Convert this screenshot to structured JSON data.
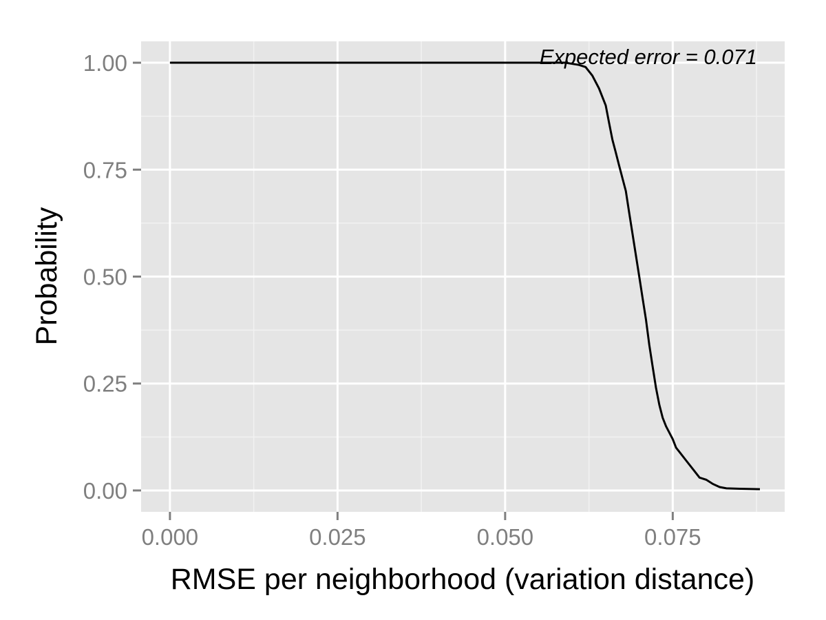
{
  "chart_data": {
    "type": "line",
    "xlabel": "RMSE per neighborhood (variation distance)",
    "ylabel": "Probability",
    "annotation": "Expected error = 0.071",
    "xlim": [
      -0.0043,
      0.0917
    ],
    "ylim": [
      -0.05,
      1.05
    ],
    "x_ticks": [
      0.0,
      0.025,
      0.05,
      0.075
    ],
    "x_tick_labels": [
      "0.000",
      "0.025",
      "0.050",
      "0.075"
    ],
    "y_ticks": [
      0.0,
      0.25,
      0.5,
      0.75,
      1.0
    ],
    "y_tick_labels": [
      "0.00",
      "0.25",
      "0.50",
      "0.75",
      "1.00"
    ],
    "grid": true,
    "colors": {
      "panel": "#e5e5e5",
      "grid_major": "#ffffff",
      "grid_minor": "#f2f2f2",
      "line": "#000000",
      "tick_text": "#7f7f7f"
    },
    "series": [
      {
        "x": [
          0.0,
          0.055,
          0.059,
          0.061,
          0.062,
          0.063,
          0.064,
          0.065,
          0.0655,
          0.066,
          0.0665,
          0.067,
          0.0675,
          0.068,
          0.0685,
          0.069,
          0.0695,
          0.07,
          0.0705,
          0.071,
          0.0715,
          0.072,
          0.0725,
          0.073,
          0.0735,
          0.074,
          0.075,
          0.0755,
          0.076,
          0.077,
          0.078,
          0.079,
          0.08,
          0.081,
          0.082,
          0.083,
          0.085,
          0.088
        ],
        "y": [
          1.0,
          1.0,
          1.0,
          0.995,
          0.99,
          0.97,
          0.94,
          0.9,
          0.86,
          0.82,
          0.79,
          0.76,
          0.73,
          0.7,
          0.65,
          0.6,
          0.55,
          0.5,
          0.45,
          0.4,
          0.34,
          0.29,
          0.24,
          0.2,
          0.17,
          0.15,
          0.12,
          0.1,
          0.09,
          0.07,
          0.05,
          0.03,
          0.025,
          0.015,
          0.008,
          0.005,
          0.004,
          0.003
        ]
      }
    ]
  }
}
